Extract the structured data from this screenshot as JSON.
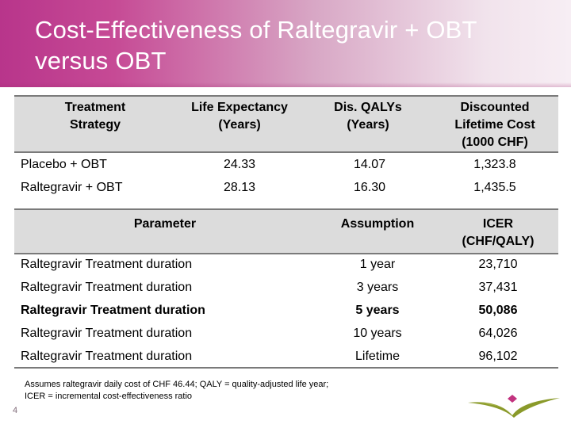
{
  "slide": {
    "title_line1": "Cost-Effectiveness of Raltegravir + OBT",
    "title_line2": "versus OBT",
    "page_number": "4",
    "footnote_line1": "Assumes raltegravir daily cost of CHF 46.44; QALY = quality-adjusted life year;",
    "footnote_line2": "ICER = incremental cost-effectiveness ratio"
  },
  "table1": {
    "headers": [
      [
        "Treatment",
        "Strategy"
      ],
      [
        "Life Expectancy",
        "(Years)"
      ],
      [
        "Dis. QALYs",
        "(Years)"
      ],
      [
        "Discounted",
        "Lifetime Cost",
        "(1000 CHF)"
      ]
    ],
    "rows": [
      [
        "Placebo + OBT",
        "24.33",
        "14.07",
        "1,323.8"
      ],
      [
        "Raltegravir + OBT",
        "28.13",
        "16.30",
        "1,435.5"
      ]
    ]
  },
  "table2": {
    "headers": [
      [
        "Parameter"
      ],
      [
        "Assumption"
      ],
      [
        "ICER",
        "(CHF/QALY)"
      ]
    ],
    "rows": [
      [
        "Raltegravir Treatment duration",
        "1 year",
        "23,710"
      ],
      [
        "Raltegravir Treatment duration",
        "3 years",
        "37,431"
      ],
      [
        "Raltegravir Treatment duration",
        "5 years",
        "50,086"
      ],
      [
        "Raltegravir Treatment duration",
        "10 years",
        "64,026"
      ],
      [
        "Raltegravir Treatment duration",
        "Lifetime",
        "96,102"
      ]
    ],
    "highlighted_row": 2
  },
  "colors": {
    "banner_start": "#b8358b",
    "banner_end": "#f7eef4",
    "header_fill": "#dcdcdc",
    "rule": "#7a7a7a",
    "logo_green": "#8a9a2a",
    "logo_pink": "#c2337f"
  }
}
